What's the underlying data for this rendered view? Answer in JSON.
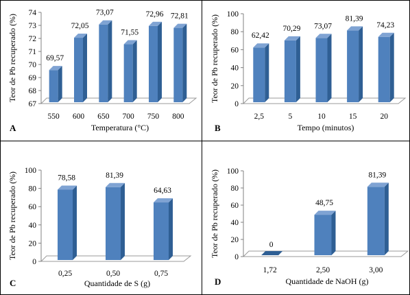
{
  "colors": {
    "bar_front": "#4f81bd",
    "bar_side": "#2f5f94",
    "bar_top": "#7fa3d3",
    "floor_fill": "#ffffff",
    "floor_edge": "#9a9a9a",
    "frame": "#000000",
    "text": "#000000"
  },
  "chart_data": [
    {
      "type": "bar",
      "panel_letter": "A",
      "categories": [
        "550",
        "600",
        "650",
        "700",
        "750",
        "800"
      ],
      "values": [
        69.57,
        72.05,
        73.07,
        71.55,
        72.96,
        72.81
      ],
      "value_labels": [
        "69,57",
        "72,05",
        "73,07",
        "71,55",
        "72,96",
        "72,81"
      ],
      "xlabel": "Temperatura (°C)",
      "ylabel": "Teor de Pb recuperado (%)",
      "ylim": [
        67,
        74
      ],
      "yticks": [
        67,
        68,
        69,
        70,
        71,
        72,
        73,
        74
      ],
      "grid": false,
      "legend": "none"
    },
    {
      "type": "bar",
      "panel_letter": "B",
      "categories": [
        "2,5",
        "5",
        "10",
        "15",
        "20"
      ],
      "values": [
        62.42,
        70.29,
        73.07,
        81.39,
        74.23
      ],
      "value_labels": [
        "62,42",
        "70,29",
        "73,07",
        "81,39",
        "74,23"
      ],
      "xlabel": "Tempo (minutos)",
      "ylabel": "Teor de Pb recuperado (%)",
      "ylim": [
        0,
        100
      ],
      "yticks": [
        0,
        20,
        40,
        60,
        80,
        100
      ],
      "grid": false,
      "legend": "none"
    },
    {
      "type": "bar",
      "panel_letter": "C",
      "categories": [
        "0,25",
        "0,50",
        "0,75"
      ],
      "values": [
        78.58,
        81.39,
        64.63
      ],
      "value_labels": [
        "78,58",
        "81,39",
        "64,63"
      ],
      "xlabel": "Quantidade de S (g)",
      "ylabel": "Teor de Pb recuperado (%)",
      "ylim": [
        0,
        100
      ],
      "yticks": [
        0,
        20,
        40,
        60,
        80,
        100
      ],
      "grid": false,
      "legend": "none"
    },
    {
      "type": "bar",
      "panel_letter": "D",
      "categories": [
        "1,72",
        "2,50",
        "3,00"
      ],
      "values": [
        0,
        48.75,
        81.39
      ],
      "value_labels": [
        "0",
        "48,75",
        "81,39"
      ],
      "xlabel": "Quantidade de NaOH (g)",
      "ylabel": "Teor de Pb recuperado (%)",
      "ylim": [
        0,
        100
      ],
      "yticks": [
        0,
        20,
        40,
        60,
        80,
        100
      ],
      "grid": false,
      "legend": "none"
    }
  ]
}
